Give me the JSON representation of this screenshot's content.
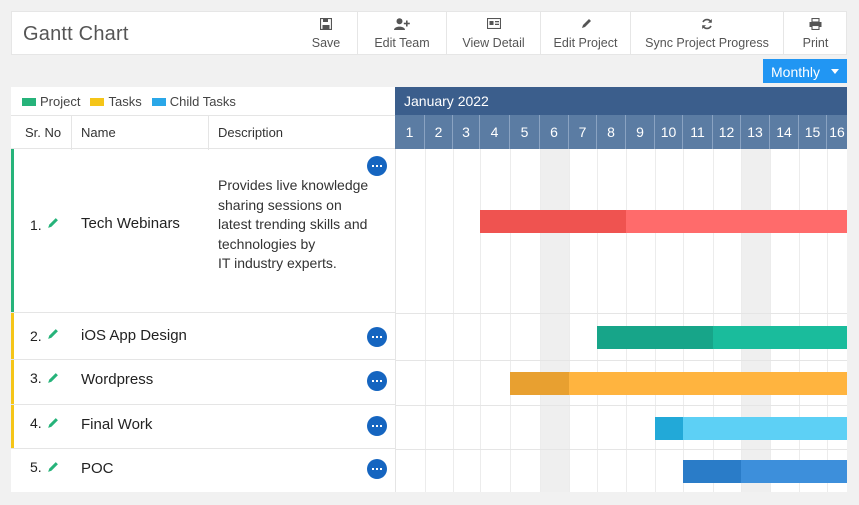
{
  "app": {
    "title": "Gantt Chart"
  },
  "toolbar": [
    {
      "id": "save",
      "label": "Save",
      "icon": "save-icon"
    },
    {
      "id": "edit-team",
      "label": "Edit Team",
      "icon": "user-plus-icon"
    },
    {
      "id": "view-detail",
      "label": "View Detail",
      "icon": "id-card-icon"
    },
    {
      "id": "edit-project",
      "label": "Edit Project",
      "icon": "pencil-icon"
    },
    {
      "id": "sync-progress",
      "label": "Sync Project Progress",
      "icon": "refresh-icon"
    },
    {
      "id": "print",
      "label": "Print",
      "icon": "printer-icon"
    }
  ],
  "view_select": {
    "selected": "Monthly"
  },
  "legend": [
    {
      "label": "Project",
      "color": "#26b37a"
    },
    {
      "label": "Tasks",
      "color": "#f5c518"
    },
    {
      "label": "Child Tasks",
      "color": "#2aa7e8"
    }
  ],
  "columns": {
    "srno": "Sr. No",
    "name": "Name",
    "description": "Description"
  },
  "timeline": {
    "month": "January 2022",
    "days": [
      "1",
      "2",
      "3",
      "4",
      "5",
      "6",
      "7",
      "8",
      "9",
      "10",
      "11",
      "12",
      "13",
      "14",
      "15",
      "16"
    ],
    "weekend_days": [
      6,
      13
    ]
  },
  "rows": [
    {
      "sr": "1.",
      "name": "Tech Webinars",
      "type": "project",
      "accent": "#26b37a",
      "description": [
        "Provides live knowledge",
        "sharing sessions on",
        "latest trending skills and",
        "technologies by",
        "IT industry experts."
      ],
      "bar": {
        "start_day": 4,
        "end_day": 16,
        "progress_end_day": 8,
        "color_done": "#ef5350",
        "color_rest": "#ff6b6b"
      }
    },
    {
      "sr": "2.",
      "name": "iOS App Design",
      "type": "task",
      "accent": "#f5c518",
      "bar": {
        "start_day": 8,
        "end_day": 16,
        "progress_end_day": 11,
        "color_done": "#17a589",
        "color_rest": "#1abc9c"
      }
    },
    {
      "sr": "3.",
      "name": "Wordpress",
      "type": "task",
      "accent": "#f5c518",
      "bar": {
        "start_day": 5,
        "end_day": 16,
        "progress_end_day": 6,
        "color_done": "#e8a030",
        "color_rest": "#ffb43f"
      }
    },
    {
      "sr": "4.",
      "name": "Final Work",
      "type": "task",
      "accent": "#f5c518",
      "bar": {
        "start_day": 10,
        "end_day": 16,
        "progress_end_day": 10,
        "color_done": "#22a9d8",
        "color_rest": "#5dd0f5"
      }
    },
    {
      "sr": "5.",
      "name": "POC",
      "type": "child",
      "accent": "#ffffff",
      "bar": {
        "start_day": 11,
        "end_day": 16,
        "progress_end_day": 12,
        "color_done": "#2a7cc8",
        "color_rest": "#3d8fdb"
      }
    }
  ]
}
